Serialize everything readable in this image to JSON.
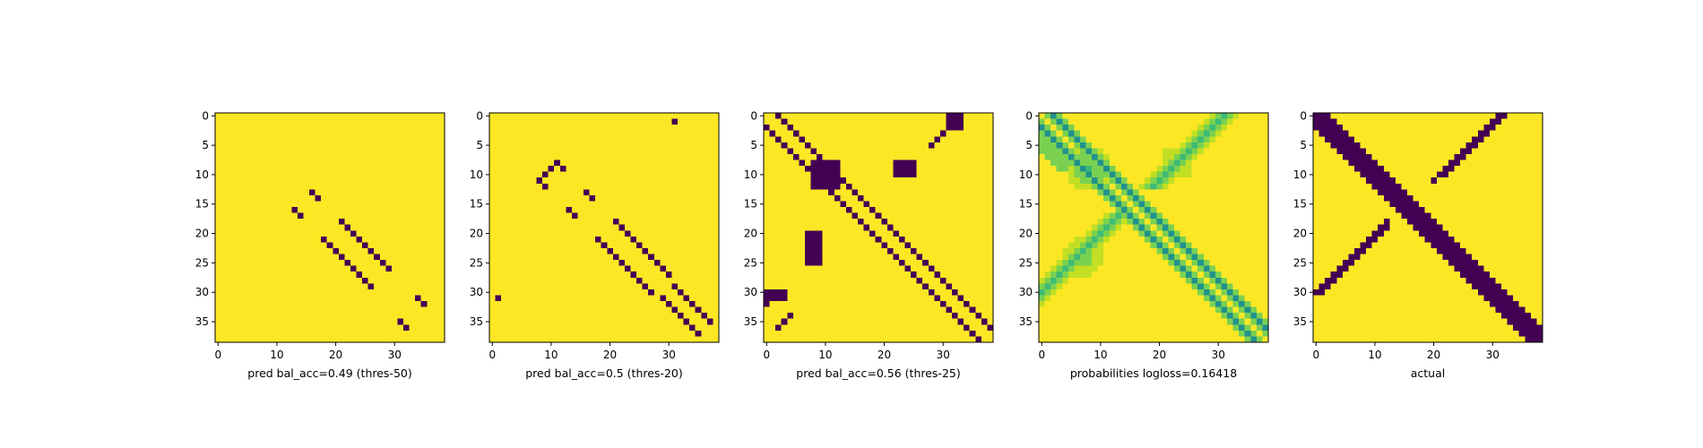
{
  "chart_data": [
    {
      "type": "heatmap",
      "kind": "binary-pattern",
      "grid_size": 39,
      "xlabel": "pred bal_acc=0.49 (thres-50)",
      "xticks": [
        "0",
        "10",
        "20",
        "30"
      ],
      "yticks": [
        "0",
        "5",
        "10",
        "15",
        "20",
        "25",
        "30",
        "35"
      ],
      "colormap": {
        "0": "#440154",
        "1": "#fde725"
      },
      "cells": [
        [
          16,
          13
        ],
        [
          17,
          14
        ],
        [
          13,
          16
        ],
        [
          14,
          17
        ],
        [
          21,
          18
        ],
        [
          22,
          19
        ],
        [
          23,
          20
        ],
        [
          24,
          21
        ],
        [
          25,
          22
        ],
        [
          26,
          23
        ],
        [
          27,
          24
        ],
        [
          28,
          25
        ],
        [
          29,
          26
        ],
        [
          18,
          21
        ],
        [
          19,
          22
        ],
        [
          20,
          23
        ],
        [
          21,
          24
        ],
        [
          22,
          25
        ],
        [
          23,
          26
        ],
        [
          24,
          27
        ],
        [
          25,
          28
        ],
        [
          26,
          29
        ],
        [
          35,
          31
        ],
        [
          36,
          32
        ],
        [
          31,
          34
        ],
        [
          32,
          35
        ]
      ]
    },
    {
      "type": "heatmap",
      "kind": "binary-pattern",
      "grid_size": 39,
      "xlabel": "pred bal_acc=0.5 (thres-20)",
      "xticks": [
        "0",
        "10",
        "20",
        "30"
      ],
      "yticks": [
        "0",
        "5",
        "10",
        "15",
        "20",
        "25",
        "30",
        "35"
      ],
      "colormap": {
        "0": "#440154",
        "1": "#fde725"
      },
      "cells": [
        [
          31,
          1
        ],
        [
          1,
          31
        ],
        [
          8,
          11
        ],
        [
          9,
          10
        ],
        [
          10,
          9
        ],
        [
          11,
          8
        ],
        [
          12,
          9
        ],
        [
          9,
          12
        ],
        [
          16,
          13
        ],
        [
          17,
          14
        ],
        [
          13,
          16
        ],
        [
          14,
          17
        ],
        [
          21,
          18
        ],
        [
          22,
          19
        ],
        [
          23,
          20
        ],
        [
          24,
          21
        ],
        [
          25,
          22
        ],
        [
          26,
          23
        ],
        [
          27,
          24
        ],
        [
          28,
          25
        ],
        [
          29,
          26
        ],
        [
          30,
          27
        ],
        [
          18,
          21
        ],
        [
          19,
          22
        ],
        [
          20,
          23
        ],
        [
          21,
          24
        ],
        [
          22,
          25
        ],
        [
          23,
          26
        ],
        [
          24,
          27
        ],
        [
          25,
          28
        ],
        [
          26,
          29
        ],
        [
          27,
          30
        ],
        [
          31,
          29
        ],
        [
          32,
          30
        ],
        [
          33,
          31
        ],
        [
          34,
          32
        ],
        [
          35,
          33
        ],
        [
          36,
          34
        ],
        [
          37,
          35
        ],
        [
          29,
          31
        ],
        [
          30,
          32
        ],
        [
          31,
          33
        ],
        [
          32,
          34
        ],
        [
          33,
          35
        ],
        [
          34,
          36
        ],
        [
          35,
          37
        ]
      ]
    },
    {
      "type": "heatmap",
      "kind": "binary-pattern",
      "grid_size": 39,
      "xlabel": "pred bal_acc=0.56 (thres-25)",
      "xticks": [
        "0",
        "10",
        "20",
        "30"
      ],
      "yticks": [
        "0",
        "5",
        "10",
        "15",
        "20",
        "25",
        "30",
        "35"
      ],
      "colormap": {
        "0": "#440154",
        "1": "#fde725"
      },
      "diagonal_bands": [
        {
          "row_minus_col": 2,
          "from_col": 0,
          "to_col": 36
        },
        {
          "row_minus_col": -2,
          "from_col": 2,
          "to_col": 38
        }
      ],
      "blobs": [
        {
          "rows": [
            8,
            12
          ],
          "cols": [
            8,
            12
          ]
        },
        {
          "rows": [
            0,
            2
          ],
          "cols": [
            31,
            33
          ]
        },
        {
          "rows": [
            30,
            31
          ],
          "cols": [
            0,
            3
          ]
        },
        {
          "rows": [
            8,
            10
          ],
          "cols": [
            22,
            25
          ]
        },
        {
          "rows": [
            20,
            25
          ],
          "cols": [
            7,
            9
          ]
        }
      ],
      "cells": [
        [
          3,
          30
        ],
        [
          4,
          29
        ],
        [
          5,
          28
        ],
        [
          34,
          4
        ],
        [
          35,
          3
        ],
        [
          36,
          2
        ],
        [
          32,
          0
        ]
      ]
    },
    {
      "type": "heatmap",
      "kind": "continuous-probabilities",
      "grid_size": 39,
      "xlabel": "probabilities logloss=0.16418",
      "xticks": [
        "0",
        "10",
        "20",
        "30"
      ],
      "yticks": [
        "0",
        "5",
        "10",
        "15",
        "20",
        "25",
        "30",
        "35"
      ],
      "colormap": {
        "low": "#1f9e89",
        "mid": "#addc30",
        "high": "#fde725"
      }
    },
    {
      "type": "heatmap",
      "kind": "binary-pattern",
      "grid_size": 39,
      "xlabel": "actual",
      "xticks": [
        "0",
        "10",
        "20",
        "30"
      ],
      "yticks": [
        "0",
        "5",
        "10",
        "15",
        "20",
        "25",
        "30",
        "35"
      ],
      "colormap": {
        "0": "#440154",
        "1": "#fde725"
      },
      "diagonal_bands": [
        {
          "row_minus_col_range": [
            -2,
            2
          ],
          "from_col": 0,
          "to_col": 38
        }
      ],
      "anti_diagonals": [
        {
          "row_plus_col": 31,
          "rows": [
            0,
            11
          ]
        },
        {
          "row_plus_col": 32,
          "rows": [
            0,
            10
          ]
        },
        {
          "row_plus_col": 30,
          "rows": [
            18,
            31
          ]
        },
        {
          "row_plus_col": 31,
          "rows": [
            19,
            30
          ]
        }
      ]
    }
  ]
}
